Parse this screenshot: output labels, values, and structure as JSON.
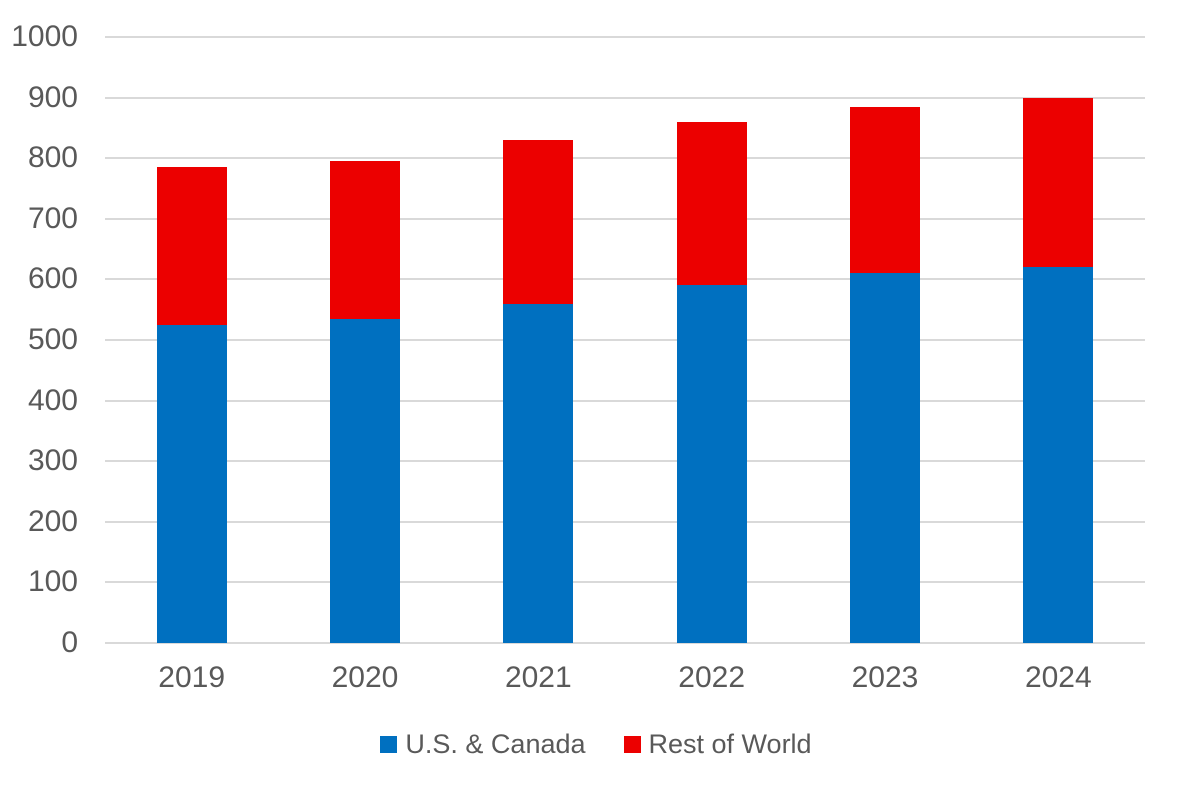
{
  "chart_data": {
    "type": "bar",
    "stacked": true,
    "title": "",
    "xlabel": "",
    "ylabel": "",
    "categories": [
      "2019",
      "2020",
      "2021",
      "2022",
      "2023",
      "2024"
    ],
    "series": [
      {
        "name": "U.S. & Canada",
        "color": "#0070C0",
        "values": [
          525,
          535,
          560,
          590,
          610,
          620
        ]
      },
      {
        "name": "Rest of World",
        "color": "#EC0000",
        "values": [
          260,
          260,
          270,
          270,
          275,
          280
        ]
      }
    ],
    "totals": [
      785,
      795,
      830,
      860,
      885,
      900
    ],
    "ylim": [
      0,
      1000
    ],
    "yticks": [
      0,
      100,
      200,
      300,
      400,
      500,
      600,
      700,
      800,
      900,
      1000
    ],
    "grid": true,
    "gridline_color": "#D9D9D9",
    "axis_text_color": "#595959",
    "legend_position": "bottom"
  }
}
